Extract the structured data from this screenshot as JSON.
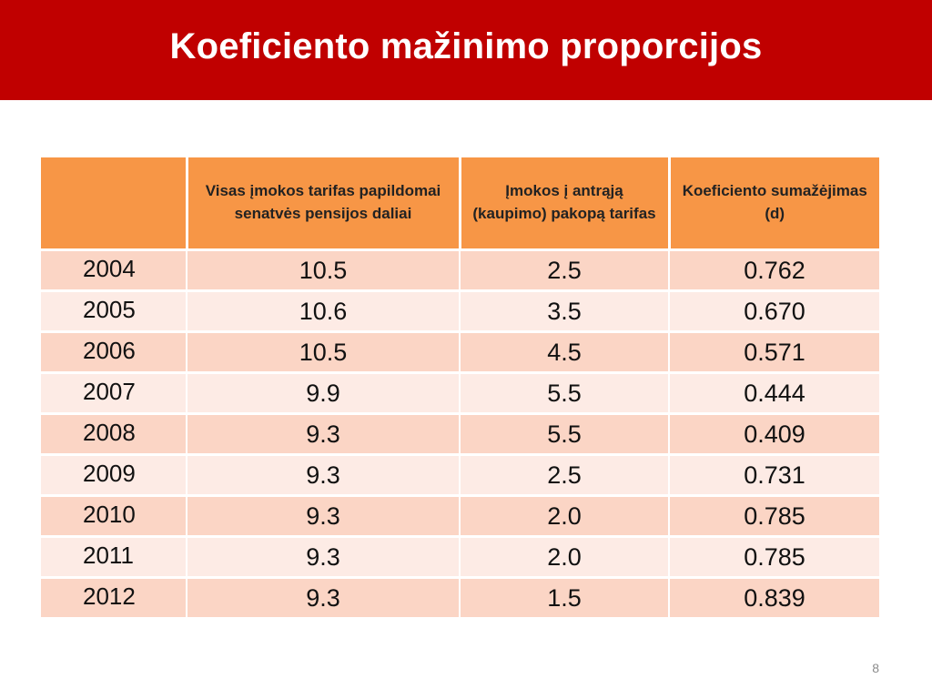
{
  "slide": {
    "title": "Koeficiento mažinimo proporcijos",
    "page_number": "8"
  },
  "colors": {
    "title_bar": "#c00000",
    "header_fill": "#f79646",
    "row_odd": "#fbd5c5",
    "row_even": "#fdebe5"
  },
  "table": {
    "headers": [
      "",
      "Visas įmokos tarifas papildomai senatvės pensijos daliai",
      "Įmokos į antrąją (kaupimo) pakopą tarifas",
      "Koeficiento sumažėjimas (d)"
    ],
    "rows": [
      [
        "2004",
        "10.5",
        "2.5",
        "0.762"
      ],
      [
        "2005",
        "10.6",
        "3.5",
        "0.670"
      ],
      [
        "2006",
        "10.5",
        "4.5",
        "0.571"
      ],
      [
        "2007",
        "9.9",
        "5.5",
        "0.444"
      ],
      [
        "2008",
        "9.3",
        "5.5",
        "0.409"
      ],
      [
        "2009",
        "9.3",
        "2.5",
        "0.731"
      ],
      [
        "2010",
        "9.3",
        "2.0",
        "0.785"
      ],
      [
        "2011",
        "9.3",
        "2.0",
        "0.785"
      ],
      [
        "2012",
        "9.3",
        "1.5",
        "0.839"
      ]
    ]
  }
}
